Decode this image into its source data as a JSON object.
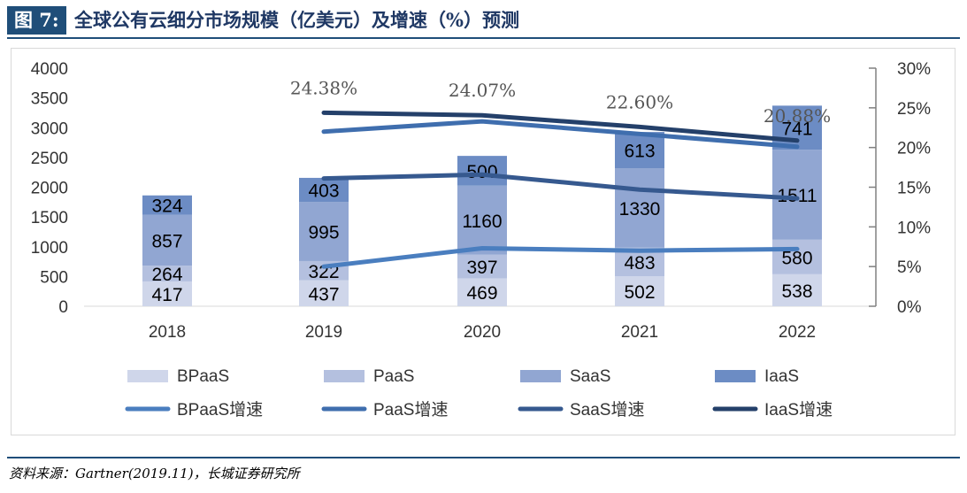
{
  "header": {
    "tag": "图 7:",
    "title": "全球公有云细分市场规模（亿美元）及增速（%）预测"
  },
  "source": "资料来源：Gartner(2019.11)，长城证券研究所",
  "colors": {
    "BPaaS": "#cfd6ea",
    "PaaS": "#b4c0df",
    "SaaS": "#91a6d2",
    "IaaS": "#6c8cc4",
    "line_bpaas": "#4a7ebf",
    "line_paas": "#3f6eae",
    "line_saas": "#36598f",
    "line_iaas": "#24406a"
  },
  "chart_data": {
    "type": "bar",
    "categories": [
      "2018",
      "2019",
      "2020",
      "2021",
      "2022"
    ],
    "ylim": [
      0,
      4000
    ],
    "yticks": [
      0,
      500,
      1000,
      1500,
      2000,
      2500,
      3000,
      3500,
      4000
    ],
    "y2lim": [
      0,
      30
    ],
    "y2ticks": [
      "0%",
      "5%",
      "10%",
      "15%",
      "20%",
      "25%",
      "30%"
    ],
    "series": [
      {
        "name": "BPaaS",
        "values": [
          417,
          437,
          469,
          502,
          538
        ]
      },
      {
        "name": "PaaS",
        "values": [
          264,
          322,
          397,
          483,
          580
        ]
      },
      {
        "name": "SaaS",
        "values": [
          857,
          995,
          1160,
          1330,
          1511
        ]
      },
      {
        "name": "IaaS",
        "values": [
          324,
          403,
          500,
          613,
          741
        ]
      }
    ],
    "lines": [
      {
        "name": "BPaaS增速",
        "values": [
          null,
          5.0,
          7.3,
          7.0,
          7.2
        ]
      },
      {
        "name": "PaaS增速",
        "values": [
          null,
          22.0,
          23.3,
          21.7,
          20.1
        ]
      },
      {
        "name": "SaaS增速",
        "values": [
          null,
          16.1,
          16.6,
          14.7,
          13.6
        ]
      },
      {
        "name": "IaaS增速",
        "values": [
          null,
          24.38,
          24.07,
          22.6,
          20.88
        ]
      }
    ],
    "growth_labels": [
      "24.38%",
      "24.07%",
      "22.60%",
      "20.88%"
    ],
    "legend_position": "bottom"
  }
}
